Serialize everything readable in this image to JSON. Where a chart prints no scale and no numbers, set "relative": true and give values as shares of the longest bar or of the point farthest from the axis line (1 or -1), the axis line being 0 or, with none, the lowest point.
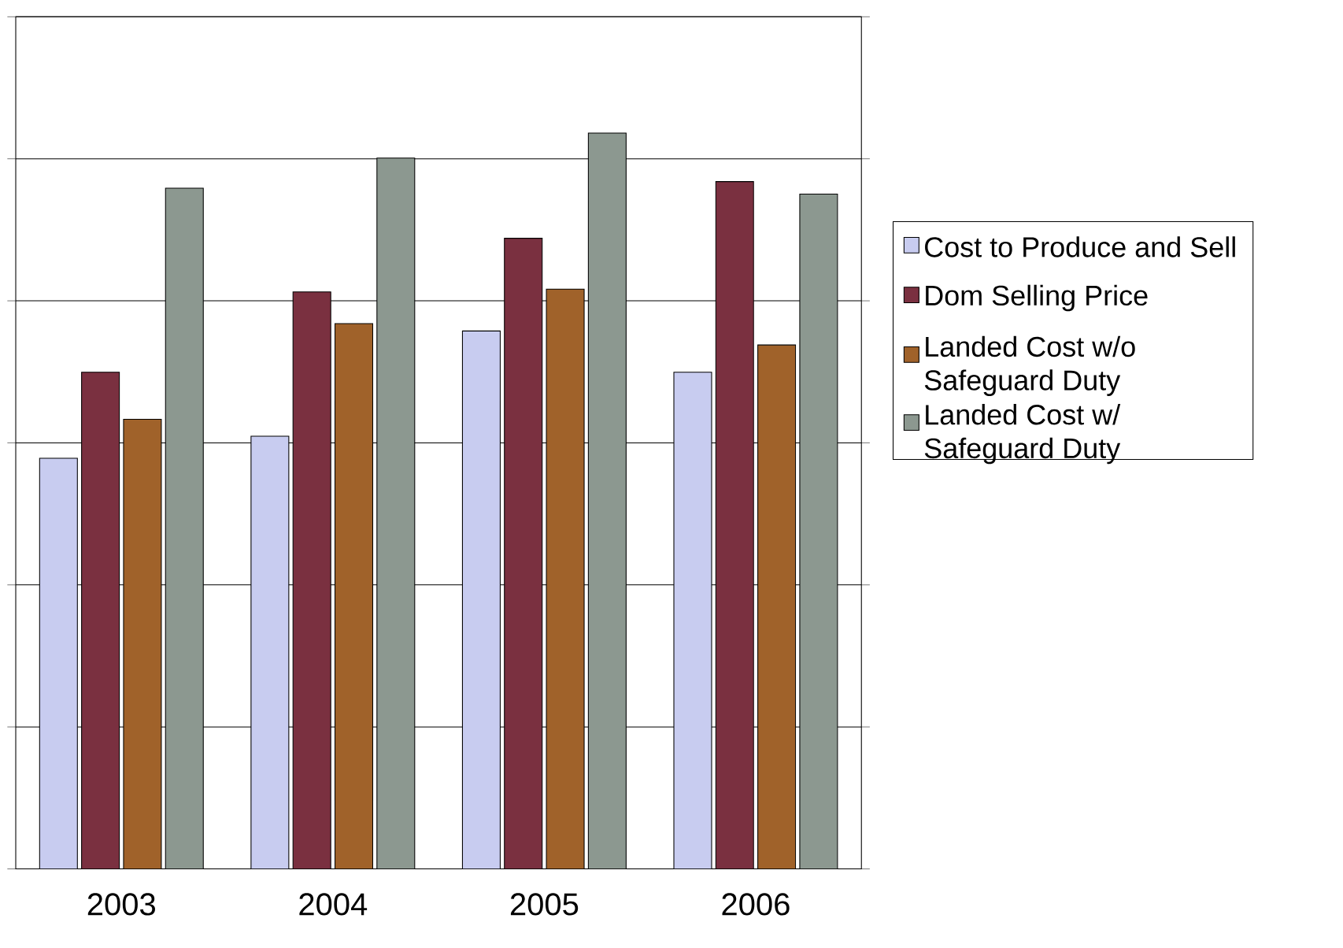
{
  "chart_data": {
    "type": "bar",
    "relative": true,
    "grid": "y",
    "legend": "right",
    "categories": [
      "2003",
      "2004",
      "2005",
      "2006"
    ],
    "series": [
      {
        "name": "Cost to Produce and Sell",
        "color": "#c8ccf0",
        "values": [
          0.558,
          0.588,
          0.731,
          0.675
        ]
      },
      {
        "name": "Dom Selling Price",
        "color": "#7a3040",
        "values": [
          0.675,
          0.784,
          0.857,
          0.934
        ]
      },
      {
        "name": "Landed Cost w/o Safeguard Duty",
        "color": "#a0622a",
        "values": [
          0.611,
          0.741,
          0.788,
          0.712
        ]
      },
      {
        "name": "Landed Cost w/ Safeguard Duty",
        "color": "#8c9890",
        "values": [
          0.925,
          0.966,
          1,
          0.917
        ]
      }
    ]
  }
}
